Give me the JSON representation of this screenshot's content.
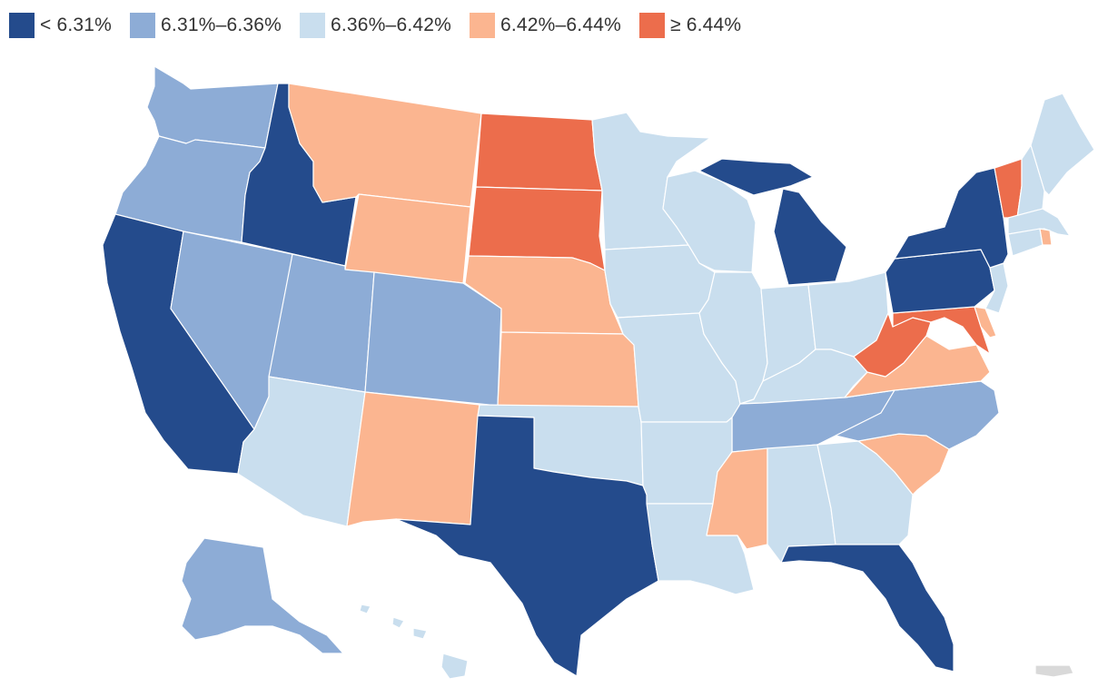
{
  "legend": {
    "items": [
      {
        "label": "< 6.31%",
        "color": "#244b8c"
      },
      {
        "label": "6.31%–6.36%",
        "color": "#8dacd6"
      },
      {
        "label": "6.36%–6.42%",
        "color": "#c9deee"
      },
      {
        "label": "6.42%–6.44%",
        "color": "#fbb590"
      },
      {
        "label": "≥ 6.44%",
        "color": "#ec6d4c"
      }
    ]
  },
  "map": {
    "no_data_color": "#d9d9d9",
    "states": [
      {
        "name": "Washington",
        "bin": 1
      },
      {
        "name": "Oregon",
        "bin": 1
      },
      {
        "name": "California",
        "bin": 0
      },
      {
        "name": "Idaho",
        "bin": 0
      },
      {
        "name": "Nevada",
        "bin": 1
      },
      {
        "name": "Montana",
        "bin": 3
      },
      {
        "name": "Wyoming",
        "bin": 3
      },
      {
        "name": "Utah",
        "bin": 1
      },
      {
        "name": "Arizona",
        "bin": 2
      },
      {
        "name": "Colorado",
        "bin": 1
      },
      {
        "name": "New Mexico",
        "bin": 3
      },
      {
        "name": "North Dakota",
        "bin": 4
      },
      {
        "name": "South Dakota",
        "bin": 4
      },
      {
        "name": "Nebraska",
        "bin": 3
      },
      {
        "name": "Kansas",
        "bin": 3
      },
      {
        "name": "Oklahoma",
        "bin": 2
      },
      {
        "name": "Texas",
        "bin": 0
      },
      {
        "name": "Minnesota",
        "bin": 2
      },
      {
        "name": "Iowa",
        "bin": 2
      },
      {
        "name": "Missouri",
        "bin": 2
      },
      {
        "name": "Arkansas",
        "bin": 2
      },
      {
        "name": "Louisiana",
        "bin": 2
      },
      {
        "name": "Wisconsin",
        "bin": 2
      },
      {
        "name": "Illinois",
        "bin": 2
      },
      {
        "name": "Michigan",
        "bin": 0
      },
      {
        "name": "Indiana",
        "bin": 2
      },
      {
        "name": "Ohio",
        "bin": 2
      },
      {
        "name": "Kentucky",
        "bin": 2
      },
      {
        "name": "Tennessee",
        "bin": 1
      },
      {
        "name": "Mississippi",
        "bin": 3
      },
      {
        "name": "Alabama",
        "bin": 2
      },
      {
        "name": "Georgia",
        "bin": 2
      },
      {
        "name": "Florida",
        "bin": 0
      },
      {
        "name": "South Carolina",
        "bin": 3
      },
      {
        "name": "North Carolina",
        "bin": 1
      },
      {
        "name": "Virginia",
        "bin": 3
      },
      {
        "name": "West Virginia",
        "bin": 4
      },
      {
        "name": "Maryland",
        "bin": 4
      },
      {
        "name": "Delaware",
        "bin": 3
      },
      {
        "name": "Pennsylvania",
        "bin": 0
      },
      {
        "name": "New Jersey",
        "bin": 2
      },
      {
        "name": "New York",
        "bin": 0
      },
      {
        "name": "Connecticut",
        "bin": 2
      },
      {
        "name": "Rhode Island",
        "bin": 3
      },
      {
        "name": "Massachusetts",
        "bin": 2
      },
      {
        "name": "Vermont",
        "bin": 4
      },
      {
        "name": "New Hampshire",
        "bin": 2
      },
      {
        "name": "Maine",
        "bin": 2
      },
      {
        "name": "Alaska",
        "bin": 1
      },
      {
        "name": "Hawaii",
        "bin": 2
      },
      {
        "name": "Puerto Rico",
        "bin": null
      }
    ]
  }
}
